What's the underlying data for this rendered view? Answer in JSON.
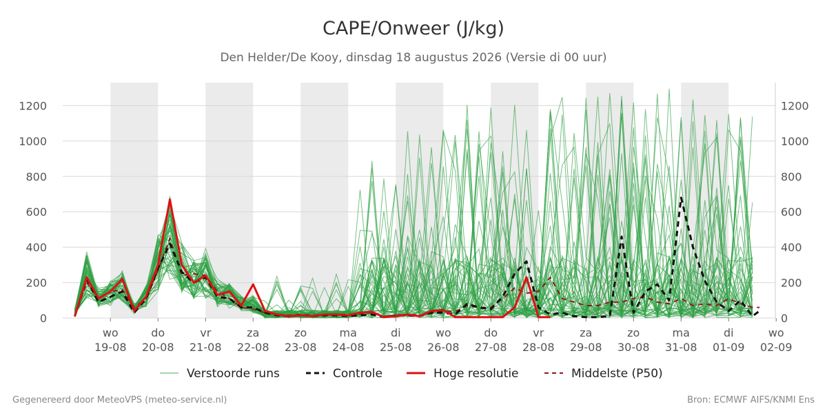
{
  "chart_data": {
    "type": "line",
    "title": "CAPE/Onweer (J/kg)",
    "subtitle": "Den Helder/De Kooy, dinsdag 18 augustus 2026 (Versie di 00 uur)",
    "ylim": [
      0,
      1330
    ],
    "yticks": [
      0,
      200,
      400,
      600,
      800,
      1000,
      1200
    ],
    "xlim": [
      0,
      14.4
    ],
    "x_ticks": [
      {
        "day": "wo",
        "date": "19-08"
      },
      {
        "day": "do",
        "date": "20-08"
      },
      {
        "day": "vr",
        "date": "21-08"
      },
      {
        "day": "za",
        "date": "22-08"
      },
      {
        "day": "zo",
        "date": "23-08"
      },
      {
        "day": "ma",
        "date": "24-08"
      },
      {
        "day": "di",
        "date": "25-08"
      },
      {
        "day": "wo",
        "date": "26-08"
      },
      {
        "day": "do",
        "date": "27-08"
      },
      {
        "day": "vr",
        "date": "28-08"
      },
      {
        "day": "za",
        "date": "29-08"
      },
      {
        "day": "zo",
        "date": "30-08"
      },
      {
        "day": "ma",
        "date": "31-08"
      },
      {
        "day": "di",
        "date": "01-09"
      },
      {
        "day": "wo",
        "date": "02-09"
      }
    ],
    "night_bands": [
      [
        0.75,
        1.75
      ],
      [
        2.75,
        3.75
      ],
      [
        4.75,
        5.75
      ],
      [
        6.75,
        7.75
      ],
      [
        8.75,
        9.75
      ],
      [
        10.75,
        11.75
      ],
      [
        12.75,
        13.75
      ]
    ],
    "grid": true,
    "legend_position": "bottom",
    "series": [
      {
        "name": "Hoge resolutie",
        "color": "#dd1111",
        "style": "solid",
        "x": [
          0,
          0.25,
          0.5,
          0.75,
          1.0,
          1.25,
          1.5,
          1.75,
          2.0,
          2.25,
          2.5,
          2.75,
          3.0,
          3.25,
          3.5,
          3.75,
          4.0,
          4.25,
          4.5,
          4.75,
          5.0,
          5.25,
          5.5,
          5.75,
          6.0,
          6.25,
          6.5,
          6.75,
          7.0,
          7.25,
          7.5,
          7.75,
          8.0,
          8.25,
          8.5,
          8.75,
          9.0,
          9.25,
          9.5,
          9.75,
          10.0
        ],
        "values": [
          10,
          230,
          110,
          150,
          220,
          40,
          120,
          300,
          670,
          300,
          200,
          240,
          130,
          150,
          70,
          190,
          40,
          20,
          10,
          15,
          10,
          20,
          20,
          15,
          30,
          35,
          5,
          10,
          20,
          10,
          40,
          45,
          5,
          5,
          5,
          5,
          5,
          60,
          230,
          5,
          5
        ]
      },
      {
        "name": "Controle",
        "color": "#111111",
        "style": "dashed",
        "x": [
          0,
          0.25,
          0.5,
          0.75,
          1.0,
          1.25,
          1.5,
          1.75,
          2.0,
          2.25,
          2.5,
          2.75,
          3.0,
          3.25,
          3.5,
          3.75,
          4.0,
          4.25,
          4.5,
          4.75,
          5.0,
          5.25,
          5.5,
          5.75,
          6.0,
          6.25,
          6.5,
          6.75,
          7.0,
          7.25,
          7.5,
          7.75,
          8.0,
          8.25,
          8.5,
          8.75,
          9.0,
          9.25,
          9.5,
          9.75,
          10.0,
          10.25,
          10.5,
          10.75,
          11.0,
          11.25,
          11.5,
          11.75,
          12.0,
          12.25,
          12.5,
          12.75,
          13.0,
          13.25,
          13.5,
          13.75,
          14.0,
          14.25,
          14.4
        ],
        "values": [
          10,
          220,
          90,
          120,
          150,
          30,
          110,
          280,
          420,
          260,
          200,
          230,
          120,
          110,
          60,
          60,
          30,
          15,
          10,
          15,
          10,
          15,
          15,
          10,
          15,
          20,
          5,
          15,
          15,
          10,
          30,
          30,
          20,
          80,
          60,
          50,
          120,
          250,
          320,
          60,
          20,
          30,
          10,
          5,
          5,
          10,
          460,
          30,
          150,
          190,
          100,
          680,
          400,
          210,
          90,
          40,
          100,
          10,
          40
        ]
      },
      {
        "name": "Middelste (P50)",
        "color": "#8b1a1a",
        "style": "dashed",
        "x": [
          0,
          0.25,
          0.5,
          0.75,
          1.0,
          1.25,
          1.5,
          1.75,
          2.0,
          2.25,
          2.5,
          2.75,
          3.0,
          3.25,
          3.5,
          3.75,
          4.0,
          4.25,
          4.5,
          4.75,
          5.0,
          5.25,
          5.5,
          5.75,
          6.0,
          6.25,
          6.5,
          6.75,
          7.0,
          7.25,
          7.5,
          7.75,
          8.0,
          8.25,
          8.5,
          8.75,
          9.0,
          9.25,
          9.5,
          9.75,
          10.0,
          10.25,
          10.5,
          10.75,
          11.0,
          11.25,
          11.5,
          11.75,
          12.0,
          12.25,
          12.5,
          12.75,
          13.0,
          13.25,
          13.5,
          13.75,
          14.0,
          14.25,
          14.4
        ],
        "values": [
          10,
          200,
          110,
          150,
          160,
          60,
          110,
          270,
          450,
          240,
          250,
          240,
          150,
          110,
          60,
          50,
          30,
          20,
          15,
          20,
          15,
          20,
          20,
          20,
          25,
          30,
          10,
          15,
          20,
          15,
          30,
          40,
          35,
          70,
          60,
          60,
          110,
          170,
          140,
          150,
          230,
          110,
          90,
          70,
          70,
          90,
          90,
          110,
          120,
          90,
          80,
          110,
          70,
          80,
          70,
          110,
          80,
          60,
          60
        ]
      },
      {
        "name": "Verstoorde runs",
        "color": "#2ea043",
        "style": "thin",
        "members": 50
      }
    ]
  },
  "legend": {
    "ens": "Verstoorde runs",
    "control": "Controle",
    "hres": "Hoge resolutie",
    "p50": "Middelste (P50)"
  },
  "footer": {
    "left": "Gegenereerd door MeteoVPS (meteo-service.nl)",
    "right": "Bron: ECMWF AIFS/KNMI Ens"
  }
}
